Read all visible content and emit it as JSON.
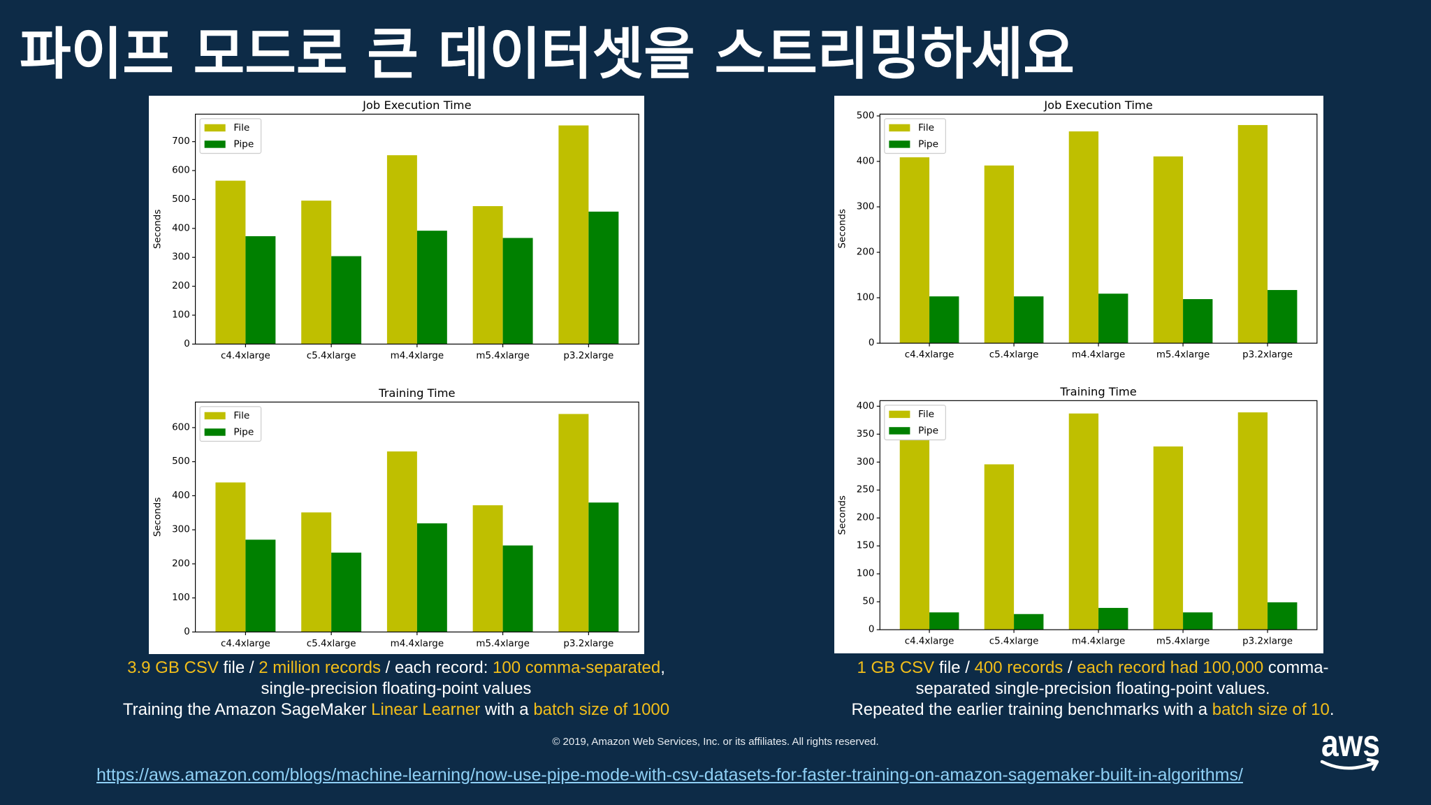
{
  "slide": {
    "title": "파이프 모드로 큰 데이터셋을 스트리밍하세요",
    "colors": {
      "background": "#0d2b47",
      "text": "#ffffff",
      "highlight": "#f2be1a",
      "link": "#8fd0f5",
      "panel": "#ffffff"
    }
  },
  "chart_data": [
    {
      "type": "bar",
      "title": "Job Execution Time",
      "ylabel": "Seconds",
      "categories": [
        "c4.4xlarge",
        "c5.4xlarge",
        "m4.4xlarge",
        "m5.4xlarge",
        "p3.2xlarge"
      ],
      "series": [
        {
          "name": "File",
          "color": "#bfbf00",
          "values": [
            565,
            496,
            653,
            477,
            756
          ]
        },
        {
          "name": "Pipe",
          "color": "#008000",
          "values": [
            373,
            304,
            392,
            367,
            458
          ]
        }
      ],
      "yticks": [
        0,
        100,
        200,
        300,
        400,
        500,
        600,
        700
      ],
      "ylim": [
        0,
        795
      ],
      "legend": "upper left",
      "grid": false
    },
    {
      "type": "bar",
      "title": "Training Time",
      "ylabel": "Seconds",
      "categories": [
        "c4.4xlarge",
        "c5.4xlarge",
        "m4.4xlarge",
        "m5.4xlarge",
        "p3.2xlarge"
      ],
      "series": [
        {
          "name": "File",
          "color": "#bfbf00",
          "values": [
            439,
            351,
            530,
            372,
            640
          ]
        },
        {
          "name": "Pipe",
          "color": "#008000",
          "values": [
            271,
            233,
            319,
            254,
            380
          ]
        }
      ],
      "yticks": [
        0,
        100,
        200,
        300,
        400,
        500,
        600
      ],
      "ylim": [
        0,
        675
      ],
      "legend": "upper left",
      "grid": false
    },
    {
      "type": "bar",
      "title": "Job Execution Time",
      "ylabel": "Seconds",
      "categories": [
        "c4.4xlarge",
        "c5.4xlarge",
        "m4.4xlarge",
        "m5.4xlarge",
        "p3.2xlarge"
      ],
      "series": [
        {
          "name": "File",
          "color": "#bfbf00",
          "values": [
            409,
            391,
            466,
            411,
            480
          ]
        },
        {
          "name": "Pipe",
          "color": "#008000",
          "values": [
            103,
            103,
            109,
            97,
            117
          ]
        }
      ],
      "yticks": [
        0,
        100,
        200,
        300,
        400,
        500
      ],
      "ylim": [
        0,
        504
      ],
      "legend": "upper left",
      "grid": false
    },
    {
      "type": "bar",
      "title": "Training Time",
      "ylabel": "Seconds",
      "categories": [
        "c4.4xlarge",
        "c5.4xlarge",
        "m4.4xlarge",
        "m5.4xlarge",
        "p3.2xlarge"
      ],
      "series": [
        {
          "name": "File",
          "color": "#bfbf00",
          "values": [
            340,
            296,
            387,
            328,
            389
          ]
        },
        {
          "name": "Pipe",
          "color": "#008000",
          "values": [
            31,
            28,
            39,
            31,
            49
          ]
        }
      ],
      "yticks": [
        0,
        50,
        100,
        150,
        200,
        250,
        300,
        350,
        400
      ],
      "ylim": [
        0,
        410
      ],
      "legend": "upper left",
      "grid": false
    }
  ],
  "captions": {
    "left": [
      [
        {
          "text": "3.9 GB CSV",
          "highlight": true
        },
        {
          "text": " file / ",
          "highlight": false
        },
        {
          "text": "2 million records",
          "highlight": true
        },
        {
          "text": " / each record: ",
          "highlight": false
        },
        {
          "text": "100 comma-separated",
          "highlight": true
        },
        {
          "text": ",",
          "highlight": false
        }
      ],
      [
        {
          "text": "single-precision floating-point values",
          "highlight": false
        }
      ],
      [
        {
          "text": "Training the Amazon SageMaker ",
          "highlight": false
        },
        {
          "text": "Linear Learner",
          "highlight": true
        },
        {
          "text": " with a ",
          "highlight": false
        },
        {
          "text": "batch size of 1000",
          "highlight": true
        }
      ]
    ],
    "right": [
      [
        {
          "text": "1 GB CSV",
          "highlight": true
        },
        {
          "text": " file / ",
          "highlight": false
        },
        {
          "text": "400 records",
          "highlight": true
        },
        {
          "text": " / ",
          "highlight": false
        },
        {
          "text": "each record had 100,000",
          "highlight": true
        },
        {
          "text": " comma-",
          "highlight": false
        }
      ],
      [
        {
          "text": "separated single-precision floating-point values.",
          "highlight": false
        }
      ],
      [
        {
          "text": "Repeated the earlier training benchmarks with a ",
          "highlight": false
        },
        {
          "text": "batch size of 10",
          "highlight": true
        },
        {
          "text": ".",
          "highlight": false
        }
      ]
    ]
  },
  "footer": {
    "copyright": "© 2019, Amazon Web Services, Inc. or its affiliates. All rights reserved.",
    "link_text": "https://aws.amazon.com/blogs/machine-learning/now-use-pipe-mode-with-csv-datasets-for-faster-training-on-amazon-sagemaker-built-in-algorithms/",
    "logo_text": "aws",
    "logo_icon": "aws-smile-arrow-icon"
  }
}
